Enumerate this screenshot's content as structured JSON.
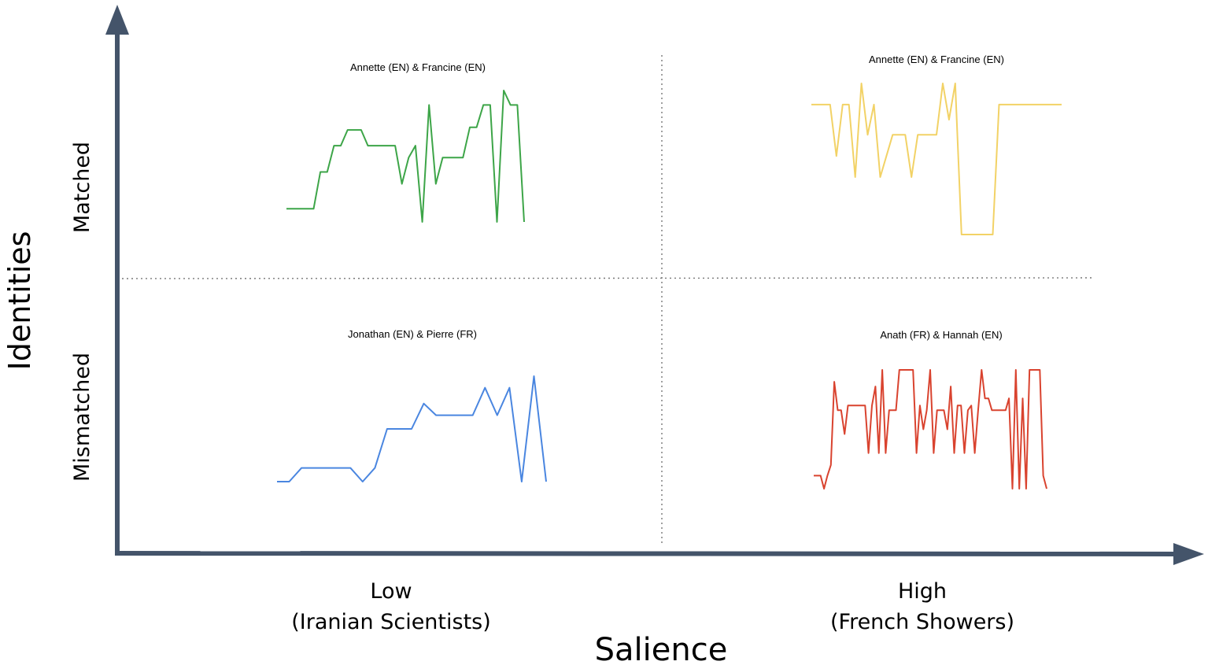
{
  "axes": {
    "y_title": "Identities",
    "x_title": "Salience",
    "y_levels": [
      "Matched",
      "Mismatched"
    ],
    "x_levels": [
      {
        "line1": "Low",
        "line2": "(Iranian Scientists)"
      },
      {
        "line1": "High",
        "line2": "(French Showers)"
      }
    ],
    "axis_color": "#44546a"
  },
  "chart_data": {
    "type": "line",
    "grid": "2x2 quadrants",
    "panels": [
      {
        "title": "Annette (EN) & Francine (EN)",
        "identities": "Matched",
        "salience": "Low",
        "color": "#3da548",
        "values": [
          0.1,
          0.1,
          0.1,
          0.1,
          0.1,
          0.38,
          0.38,
          0.58,
          0.58,
          0.7,
          0.7,
          0.7,
          0.58,
          0.58,
          0.58,
          0.58,
          0.58,
          0.29,
          0.49,
          0.58,
          0.0,
          0.89,
          0.29,
          0.49,
          0.49,
          0.49,
          0.49,
          0.72,
          0.72,
          0.89,
          0.89,
          0.0,
          1.0,
          0.89,
          0.89,
          0.0
        ]
      },
      {
        "title": "Annette (EN) & Francine (EN)",
        "identities": "Matched",
        "salience": "High",
        "color": "#f2d266",
        "values": [
          0.86,
          0.86,
          0.86,
          0.86,
          0.52,
          0.86,
          0.86,
          0.38,
          1.0,
          0.66,
          0.86,
          0.38,
          0.52,
          0.66,
          0.66,
          0.66,
          0.38,
          0.66,
          0.66,
          0.66,
          0.66,
          1.0,
          0.76,
          1.0,
          0.0,
          0.0,
          0.0,
          0.0,
          0.0,
          0.0,
          0.86,
          0.86,
          0.86,
          0.86,
          0.86,
          0.86,
          0.86,
          0.86,
          0.86,
          0.86,
          0.86
        ]
      },
      {
        "title": "Jonathan (EN) & Pierre (FR)",
        "identities": "Mismatched",
        "salience": "Low",
        "color": "#4a86e0",
        "values": [
          0.0,
          0.0,
          0.13,
          0.13,
          0.13,
          0.13,
          0.13,
          0.0,
          0.13,
          0.5,
          0.5,
          0.5,
          0.74,
          0.63,
          0.63,
          0.63,
          0.63,
          0.89,
          0.63,
          0.89,
          0.0,
          1.0,
          0.0
        ]
      },
      {
        "title": "Anath (FR) & Hannah (EN)",
        "identities": "Mismatched",
        "salience": "High",
        "color": "#d9432f",
        "values": [
          0.11,
          0.11,
          0.11,
          0.0,
          0.11,
          0.2,
          0.9,
          0.66,
          0.66,
          0.46,
          0.7,
          0.7,
          0.7,
          0.7,
          0.7,
          0.7,
          0.3,
          0.7,
          0.86,
          0.3,
          1.0,
          0.3,
          0.66,
          0.66,
          0.66,
          1.0,
          1.0,
          1.0,
          1.0,
          1.0,
          0.3,
          0.7,
          0.5,
          0.66,
          1.0,
          0.3,
          0.66,
          0.66,
          0.66,
          0.5,
          0.86,
          0.3,
          0.7,
          0.7,
          0.3,
          0.66,
          0.7,
          0.3,
          0.66,
          1.0,
          0.76,
          0.76,
          0.66,
          0.66,
          0.66,
          0.66,
          0.66,
          0.76,
          0.0,
          1.0,
          0.0,
          0.76,
          0.0,
          1.0,
          1.0,
          1.0,
          1.0,
          0.11,
          0.0
        ]
      }
    ]
  }
}
